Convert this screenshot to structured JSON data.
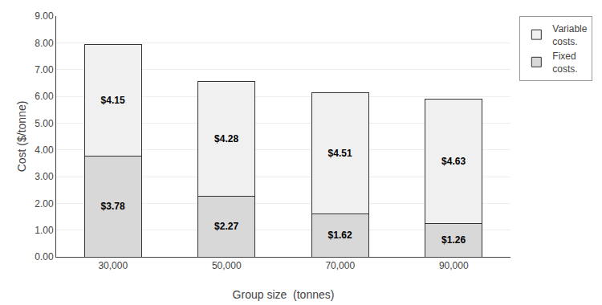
{
  "chart_data": {
    "type": "bar",
    "stacked": true,
    "categories": [
      "30,000",
      "50,000",
      "70,000",
      "90,000"
    ],
    "series": [
      {
        "name": "Fixed\ncosts.",
        "color": "#d8d8d8",
        "values": [
          3.78,
          2.27,
          1.62,
          1.26
        ],
        "value_labels": [
          "$3.78",
          "$2.27",
          "$1.62",
          "$1.26"
        ]
      },
      {
        "name": "Variable\ncosts.",
        "color": "#f0f0f0",
        "values": [
          4.15,
          4.28,
          4.51,
          4.63
        ],
        "value_labels": [
          "$4.15",
          "$4.28",
          "$4.51",
          "$4.63"
        ]
      }
    ],
    "xlabel": "Group size  (tonnes)",
    "ylabel": "Cost ($/tonne)",
    "ylim": [
      0,
      9.0
    ],
    "yticks": [
      {
        "value": 0,
        "label": "0.00"
      },
      {
        "value": 1,
        "label": "1.00"
      },
      {
        "value": 2,
        "label": "2.00"
      },
      {
        "value": 3,
        "label": "3.00"
      },
      {
        "value": 4,
        "label": "4.00"
      },
      {
        "value": 5,
        "label": "5.00"
      },
      {
        "value": 6,
        "label": "6.00"
      },
      {
        "value": 7,
        "label": "7.00"
      },
      {
        "value": 8,
        "label": "8.00"
      },
      {
        "value": 9,
        "label": "9.00"
      }
    ],
    "grid": true,
    "data_labels": true,
    "legend": "right"
  }
}
